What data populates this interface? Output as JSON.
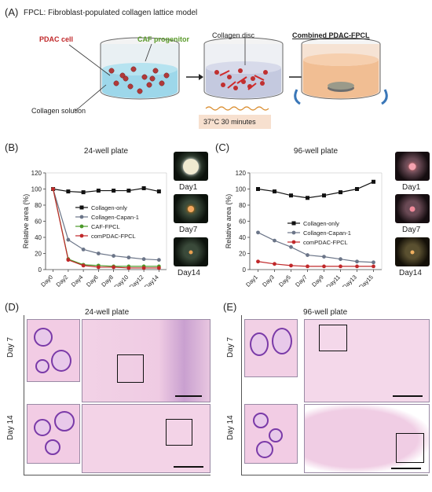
{
  "panelA": {
    "label": "(A)",
    "title": "FPCL: Fibroblast-populated collagen lattice model",
    "pdac_cell": "PDAC cell",
    "caf_progenitor": "CAF progenitor",
    "collagen_disc": "Collagen disc",
    "collagen_solution": "Collagen solution",
    "combined": "Combined PDAC-FPCL",
    "condition": "37°C 30 minutes",
    "colors": {
      "pdac": "#c0282a",
      "caf": "#5a9a2a",
      "temp_bg": "#f7e0cf"
    }
  },
  "panelB": {
    "label": "(B)",
    "title": "24-well plate",
    "thumbs": [
      "Day1",
      "Day7",
      "Day14"
    ]
  },
  "panelC": {
    "label": "(C)",
    "title": "96-well plate",
    "thumbs": [
      "Day1",
      "Day7",
      "Day14"
    ]
  },
  "panelD": {
    "label": "(D)",
    "title": "24-well plate",
    "row1": "Day 7",
    "row2": "Day 14"
  },
  "panelE": {
    "label": "(E)",
    "title": "96-well plate",
    "row1": "Day 7",
    "row2": "Day 14"
  },
  "chart_data": [
    {
      "type": "line",
      "title": "24-well plate",
      "ylabel": "Relative area (%)",
      "xlabel": "",
      "categories": [
        "Day0",
        "Day2",
        "Day4",
        "Day6",
        "Day8",
        "Day10",
        "Day12",
        "Day14"
      ],
      "ylim": [
        0,
        120
      ],
      "yticks": [
        0,
        20,
        40,
        60,
        80,
        100,
        120
      ],
      "legend_position": "right",
      "series": [
        {
          "name": "Collagen-only",
          "color": "#111111",
          "marker": "square",
          "values": [
            100,
            97,
            96,
            98,
            98,
            98,
            101,
            97
          ]
        },
        {
          "name": "Collagen-Capan-1",
          "color": "#6b7588",
          "marker": "circle",
          "values": [
            100,
            37,
            25,
            20,
            17,
            15,
            13,
            12
          ]
        },
        {
          "name": "CAF-FPCL",
          "color": "#4c9a2a",
          "marker": "circle",
          "values": [
            100,
            13,
            6,
            5,
            4,
            4,
            4,
            4
          ]
        },
        {
          "name": "comPDAC-FPCL",
          "color": "#c0282a",
          "marker": "circle",
          "values": [
            100,
            12,
            5,
            3,
            3,
            2,
            2,
            2
          ]
        }
      ]
    },
    {
      "type": "line",
      "title": "96-well plate",
      "ylabel": "Relative area (%)",
      "xlabel": "",
      "categories": [
        "Day1",
        "Day3",
        "Day5",
        "Day7",
        "Day9",
        "Day11",
        "Day13",
        "Day15"
      ],
      "ylim": [
        0,
        120
      ],
      "yticks": [
        0,
        20,
        40,
        60,
        80,
        100,
        120
      ],
      "legend_position": "center-right",
      "series": [
        {
          "name": "Collagen-only",
          "color": "#111111",
          "marker": "square",
          "values": [
            100,
            97,
            92,
            89,
            92,
            96,
            100,
            109
          ]
        },
        {
          "name": "Collagen-Capan-1",
          "color": "#6b7588",
          "marker": "circle",
          "values": [
            46,
            36,
            28,
            18,
            16,
            13,
            10,
            9
          ]
        },
        {
          "name": "comPDAC-FPCL",
          "color": "#c0282a",
          "marker": "circle",
          "values": [
            10,
            7,
            5,
            4,
            4,
            4,
            4,
            4
          ]
        }
      ]
    }
  ]
}
